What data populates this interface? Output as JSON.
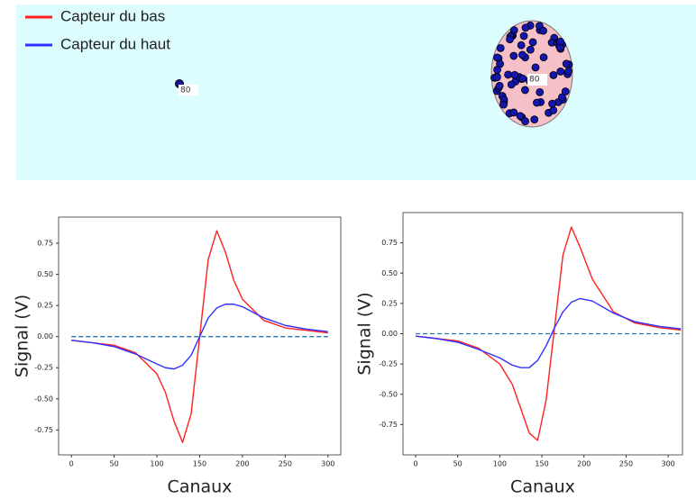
{
  "panel": {
    "legend": true,
    "markers": [
      {
        "label": "80"
      },
      {
        "label": "80"
      }
    ]
  },
  "chart_data": [
    {
      "type": "line",
      "xlabel": "Canaux",
      "ylabel": "Signal (V)",
      "x": [
        0,
        25,
        50,
        75,
        100,
        110,
        120,
        130,
        140,
        150,
        160,
        170,
        180,
        190,
        200,
        225,
        250,
        275,
        300
      ],
      "series": [
        {
          "name": "Capteur du bas",
          "color": "#ff2020",
          "values": [
            -0.03,
            -0.05,
            -0.07,
            -0.13,
            -0.3,
            -0.45,
            -0.68,
            -0.85,
            -0.62,
            0,
            0.62,
            0.85,
            0.68,
            0.45,
            0.3,
            0.13,
            0.07,
            0.05,
            0.03
          ]
        },
        {
          "name": "Capteur du haut",
          "color": "#3030ff",
          "values": [
            -0.03,
            -0.05,
            -0.08,
            -0.14,
            -0.22,
            -0.25,
            -0.26,
            -0.23,
            -0.15,
            0,
            0.15,
            0.23,
            0.26,
            0.26,
            0.24,
            0.15,
            0.09,
            0.06,
            0.04
          ]
        }
      ],
      "baseline": 0,
      "baseline_color": "#1f77b4",
      "xlim": [
        -15,
        315
      ],
      "ylim": [
        -0.95,
        0.96
      ],
      "xticks": [
        0,
        50,
        100,
        150,
        200,
        250,
        300
      ],
      "yticks": [
        -0.75,
        {
          "value": -0.5,
          "label": "-0.50"
        },
        -0.25,
        {
          "value": 0,
          "label": "0.00"
        },
        0.25,
        {
          "value": 0.5,
          "label": "0.50"
        },
        0.75
      ]
    },
    {
      "type": "line",
      "xlabel": "Canaux",
      "ylabel": "Signal (V)",
      "x": [
        0,
        25,
        50,
        75,
        100,
        115,
        125,
        135,
        145,
        155,
        165,
        175,
        185,
        195,
        210,
        235,
        260,
        290,
        315
      ],
      "series": [
        {
          "name": "Capteur du bas",
          "color": "#ff2020",
          "values": [
            -0.02,
            -0.04,
            -0.06,
            -0.12,
            -0.25,
            -0.42,
            -0.62,
            -0.82,
            -0.88,
            -0.55,
            0.05,
            0.65,
            0.88,
            0.72,
            0.45,
            0.18,
            0.09,
            0.05,
            0.03
          ]
        },
        {
          "name": "Capteur du haut",
          "color": "#3030ff",
          "values": [
            -0.02,
            -0.04,
            -0.07,
            -0.13,
            -0.2,
            -0.26,
            -0.28,
            -0.28,
            -0.22,
            -0.1,
            0.05,
            0.18,
            0.26,
            0.29,
            0.27,
            0.17,
            0.1,
            0.06,
            0.04
          ]
        }
      ],
      "baseline": 0,
      "baseline_color": "#1f77b4",
      "xlim": [
        -15,
        317
      ],
      "ylim": [
        -1,
        1
      ],
      "xticks": [
        0,
        50,
        100,
        150,
        200,
        250,
        300
      ],
      "yticks": [
        -0.75,
        {
          "value": -0.5,
          "label": "-0.50"
        },
        -0.25,
        {
          "value": 0,
          "label": "0.00"
        },
        0.25,
        {
          "value": 0.5,
          "label": "0.50"
        },
        0.75
      ]
    }
  ]
}
